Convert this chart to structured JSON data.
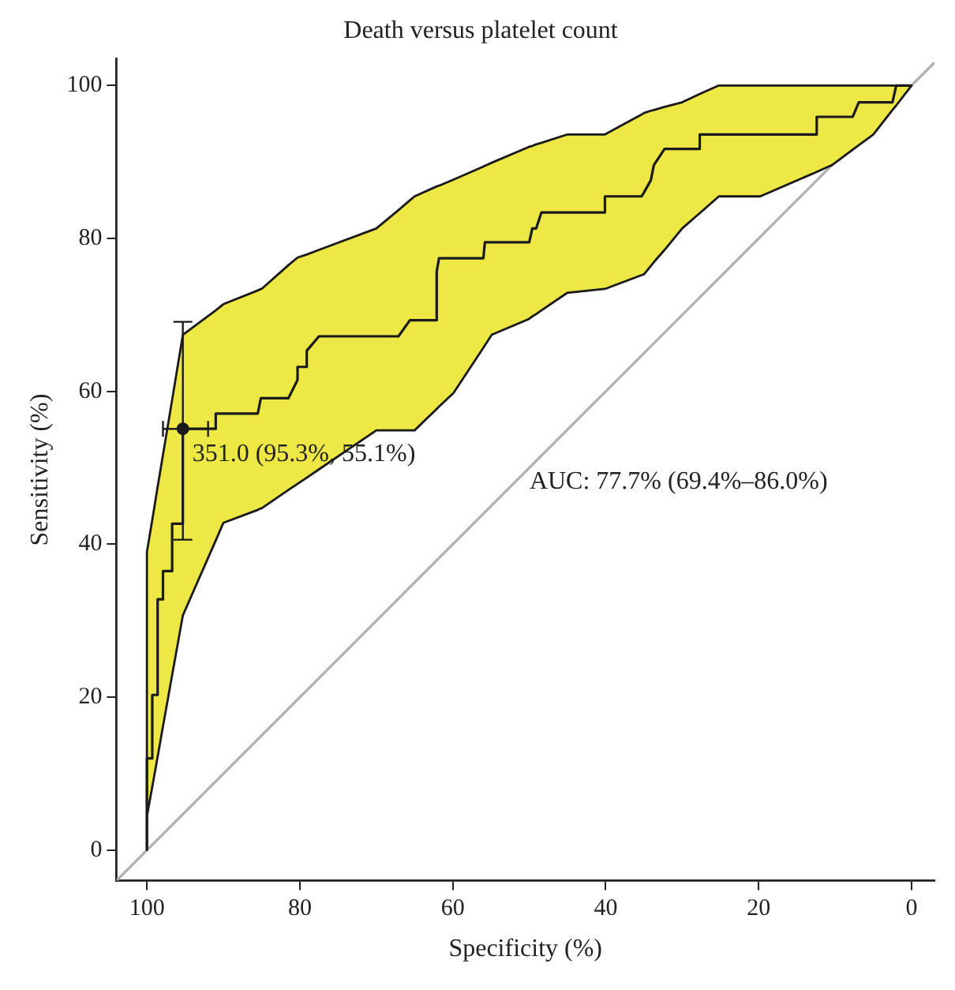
{
  "chart_data": {
    "type": "line",
    "title": "Death versus platelet count",
    "xlabel": "Specificity (%)",
    "ylabel": "Sensitivity (%)",
    "xlim": [
      104,
      -3
    ],
    "ylim": [
      -4,
      103.5
    ],
    "xticks": [
      100,
      80,
      60,
      40,
      20,
      0
    ],
    "yticks": [
      0,
      20,
      40,
      60,
      80,
      100
    ],
    "grid": false,
    "legend": false,
    "annotations": [
      {
        "text": "351.0 (95.3%, 55.1%)",
        "x": 95.3,
        "y": 55.1
      },
      "AUC: 77.7% (69.4%–86.0%)"
    ],
    "series": [
      {
        "type": "line",
        "color": "#b0b0b0",
        "x": [
          104,
          -3
        ],
        "values": [
          -4,
          103
        ]
      },
      {
        "color": "#1a1a1a",
        "x": [
          100,
          100,
          99.3,
          99.3,
          98.6,
          98.6,
          97.9,
          97.9,
          96.7,
          96.7,
          95.3,
          95.3,
          91.0,
          91.0,
          90,
          85.5,
          85.1,
          85,
          81.5,
          80.3,
          80.3,
          79.1,
          79.1,
          77.5,
          70,
          67.1,
          65.6,
          65,
          62.1,
          62.1,
          61.8,
          59.9,
          56.0,
          55.8,
          54.9,
          50.2,
          50.0,
          49.6,
          49.1,
          48.4,
          45,
          40.1,
          40.1,
          35.3,
          35,
          34.1,
          33.7,
          32.3,
          30,
          27.7,
          27.7,
          25.2,
          19.8,
          12.4,
          12.4,
          10.4,
          7.7,
          6.9,
          5,
          2.5,
          2.0,
          0
        ],
        "values": [
          0,
          12,
          12,
          20.3,
          20.3,
          32.8,
          32.8,
          36.5,
          36.5,
          42.7,
          42.7,
          55.1,
          55.1,
          57.1,
          57.1,
          57.1,
          59.1,
          59.1,
          59.1,
          61.5,
          63.2,
          63.2,
          65.3,
          67.2,
          67.2,
          67.2,
          69.3,
          69.3,
          69.3,
          75.7,
          77.4,
          77.4,
          77.4,
          79.5,
          79.5,
          79.5,
          79.5,
          81.3,
          81.3,
          83.4,
          83.4,
          83.4,
          85.5,
          85.5,
          86.0,
          87.6,
          89.6,
          91.7,
          91.7,
          91.7,
          93.6,
          93.6,
          93.6,
          93.6,
          95.9,
          95.9,
          95.9,
          97.8,
          97.8,
          97.8,
          100,
          100
        ],
        "lower": [
          0,
          4.4,
          8.3,
          8.3,
          12.2,
          12.2,
          16.2,
          16.2,
          22.9,
          22.9,
          30.7,
          30.7,
          40.5,
          40.5,
          42.8,
          44.5,
          44.7,
          44.7,
          47.1,
          47.9,
          47.9,
          48.7,
          48.7,
          49.8,
          54.9,
          54.9,
          54.9,
          54.9,
          57.7,
          57.7,
          58.0,
          59.8,
          65.7,
          66.0,
          67.4,
          69.4,
          69.5,
          69.8,
          70.1,
          70.6,
          72.9,
          73.4,
          73.4,
          75.2,
          75.3,
          76.4,
          76.9,
          78.5,
          81.3,
          83.3,
          83.3,
          85.5,
          85.5,
          88.7,
          88.7,
          89.6,
          91.6,
          92.2,
          93.6,
          96.8,
          97.4,
          100
        ],
        "upper": [
          4.4,
          39,
          43.2,
          43.2,
          47.5,
          47.5,
          51.7,
          51.7,
          58.9,
          58.9,
          67.4,
          67.4,
          70.6,
          70.6,
          71.4,
          73.2,
          73.4,
          73.4,
          76.5,
          77.5,
          77.5,
          77.9,
          77.9,
          78.5,
          81.3,
          83.7,
          85.0,
          85.5,
          86.8,
          86.8,
          86.9,
          87.7,
          89.4,
          89.5,
          89.9,
          91.9,
          92.0,
          92.1,
          92.3,
          92.5,
          93.6,
          93.6,
          93.6,
          96.2,
          96.4,
          96.7,
          96.8,
          97.2,
          97.8,
          98.9,
          98.9,
          100,
          100,
          100,
          100,
          100,
          100,
          100,
          100,
          100,
          100,
          100
        ]
      },
      {
        "type": "scatter",
        "color": "#1a1a1a",
        "marker": "circle",
        "x": [
          95.3
        ],
        "values": [
          55.1
        ],
        "errors": [
          [
            40.6,
            69.1
          ]
        ],
        "xerrors": [
          [
            92.0,
            97.9
          ]
        ]
      }
    ]
  }
}
